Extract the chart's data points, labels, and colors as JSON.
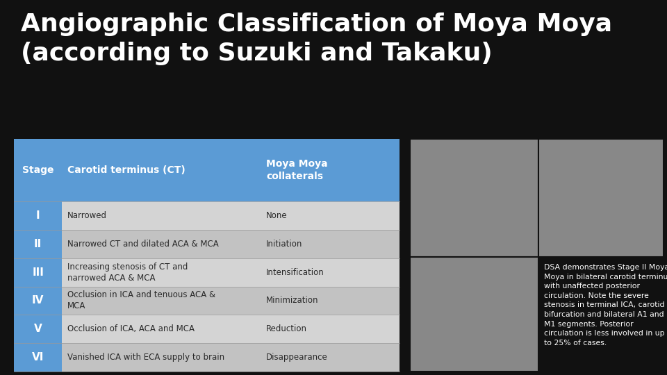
{
  "title_line1": "Angiographic Classification of Moya Moya",
  "title_line2": "(according to Suzuki and Takaku)",
  "title_color": "#ffffff",
  "title_fontsize": 26,
  "bg_color": "#111111",
  "header_bg": "#5b9bd5",
  "header_text_color": "#ffffff",
  "row_bg_even": "#d4d4d4",
  "row_bg_odd": "#c2c2c2",
  "row_text_color": "#2a2a2a",
  "stage_text_color": "#ffffff",
  "headers": [
    "Stage",
    "Carotid terminus (CT)",
    "Moya Moya\ncollaterals"
  ],
  "rows": [
    [
      "I",
      "Narrowed",
      "None"
    ],
    [
      "II",
      "Narrowed CT and dilated ACA & MCA",
      "Initiation"
    ],
    [
      "III",
      "Increasing stenosis of CT and\nnarrowed ACA & MCA",
      "Intensification"
    ],
    [
      "IV",
      "Occlusion in ICA and tenuous ACA &\nMCA",
      "Minimization"
    ],
    [
      "V",
      "Occlusion of ICA, ACA and MCA",
      "Reduction"
    ],
    [
      "VI",
      "Vanished ICA with ECA supply to brain",
      "Disappearance"
    ]
  ],
  "caption_text": "DSA demonstrates Stage II Moya\nMoya in bilateral carotid terminus\nwith unaffected posterior\ncirculation. Note the severe\nstenosis in terminal ICA, carotid\nbifurcation and bilateral A1 and\nM1 segments. Posterior\ncirculation is less involved in up\nto 25% of cases.",
  "caption_color": "#ffffff",
  "caption_fontsize": 7.8,
  "img_bg": "#888888",
  "img_border": "#111111"
}
